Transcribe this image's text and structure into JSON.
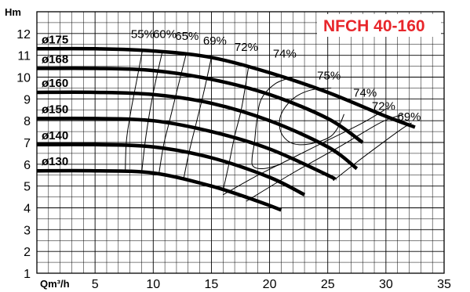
{
  "chart_data": {
    "type": "line",
    "title": "NFCH 40-160",
    "title_color": "#e8262b",
    "xlabel": "Qm³/h",
    "ylabel": "Hm",
    "xlim": [
      0,
      35
    ],
    "ylim": [
      1,
      13
    ],
    "xticks": [
      5,
      10,
      15,
      20,
      25,
      30,
      35
    ],
    "yticks": [
      1,
      2,
      3,
      4,
      5,
      6,
      7,
      8,
      9,
      10,
      11,
      12
    ],
    "grid": true,
    "series": [
      {
        "name": "ø175",
        "x": [
          0,
          5,
          10,
          15,
          20,
          25,
          30,
          32.5
        ],
        "y": [
          11.3,
          11.3,
          11.2,
          10.9,
          10.2,
          9.3,
          8.2,
          7.7
        ]
      },
      {
        "name": "ø168",
        "x": [
          0,
          5,
          10,
          15,
          20,
          25,
          28
        ],
        "y": [
          10.4,
          10.4,
          10.3,
          9.9,
          9.2,
          8.1,
          7.0
        ]
      },
      {
        "name": "ø160",
        "x": [
          0,
          5,
          10,
          15,
          20,
          25,
          27.5
        ],
        "y": [
          9.3,
          9.3,
          9.2,
          8.8,
          8.0,
          6.8,
          5.8
        ]
      },
      {
        "name": "ø150",
        "x": [
          0,
          5,
          10,
          15,
          20,
          25,
          25.6
        ],
        "y": [
          8.1,
          8.1,
          8.0,
          7.5,
          6.7,
          5.5,
          5.3
        ]
      },
      {
        "name": "ø140",
        "x": [
          0,
          5,
          10,
          15,
          20,
          23
        ],
        "y": [
          6.9,
          6.9,
          6.8,
          6.3,
          5.4,
          4.6
        ]
      },
      {
        "name": "ø130",
        "x": [
          0,
          5,
          10,
          15,
          19,
          21
        ],
        "y": [
          5.7,
          5.7,
          5.6,
          5.0,
          4.3,
          3.9
        ]
      }
    ],
    "efficiency_labels": [
      {
        "text": "55%",
        "x": 9.1,
        "y": 11.8
      },
      {
        "text": "60%",
        "x": 11.0,
        "y": 11.8
      },
      {
        "text": "65%",
        "x": 12.9,
        "y": 11.7
      },
      {
        "text": "69%",
        "x": 15.3,
        "y": 11.5
      },
      {
        "text": "72%",
        "x": 18.0,
        "y": 11.2
      },
      {
        "text": "74%",
        "x": 21.3,
        "y": 10.9
      },
      {
        "text": "75%",
        "x": 25.1,
        "y": 9.9
      },
      {
        "text": "74%",
        "x": 28.2,
        "y": 9.1
      },
      {
        "text": "72%",
        "x": 29.8,
        "y": 8.5
      },
      {
        "text": "69%",
        "x": 32.0,
        "y": 8.0
      }
    ],
    "efficiency_curves": [
      {
        "x": [
          7.6,
          7.7,
          8.1,
          8.6,
          9.1
        ],
        "y": [
          5.7,
          7.1,
          8.5,
          9.9,
          11.3
        ]
      },
      {
        "x": [
          9.0,
          9.3,
          9.7,
          10.2,
          10.8
        ],
        "y": [
          5.6,
          7.0,
          8.4,
          9.8,
          11.2
        ]
      },
      {
        "x": [
          10.5,
          10.9,
          11.5,
          12.1,
          12.8
        ],
        "y": [
          5.6,
          6.9,
          8.2,
          9.5,
          11.0
        ]
      },
      {
        "x": [
          12.6,
          13.1,
          13.7,
          14.3,
          15.0
        ],
        "y": [
          5.3,
          6.6,
          7.9,
          9.2,
          10.9
        ]
      },
      {
        "x": [
          16.0,
          16.5,
          17.0,
          17.6,
          18.2
        ],
        "y": [
          4.8,
          6.0,
          7.3,
          8.6,
          10.5
        ]
      },
      {
        "x": [
          22.0,
          20.5,
          19.3,
          18.9,
          18.7,
          18.5,
          18.6,
          19.5,
          21.0
        ],
        "y": [
          10.0,
          9.7,
          9.0,
          8.0,
          7.0,
          6.3,
          5.9,
          5.8,
          6.0
        ]
      },
      {
        "x": [
          25.3,
          23.5,
          22.0,
          21.0,
          20.9,
          21.5,
          22.5,
          24.0,
          25.3,
          26.0,
          26.4
        ],
        "y": [
          9.5,
          9.4,
          9.0,
          8.3,
          7.6,
          7.1,
          6.9,
          7.0,
          7.3,
          7.8,
          8.3
        ]
      },
      {
        "x": [
          16.0,
          19.0,
          22.0,
          25.0,
          28.0,
          30.2
        ],
        "y": [
          4.6,
          5.5,
          6.3,
          7.1,
          7.9,
          8.6
        ]
      },
      {
        "x": [
          18.0,
          22.0,
          26.0,
          29.5,
          31.5
        ],
        "y": [
          4.3,
          5.6,
          6.8,
          7.9,
          8.3
        ]
      },
      {
        "x": [
          25.6,
          27.5,
          29.5,
          31.3,
          32.2
        ],
        "y": [
          5.3,
          6.1,
          6.9,
          7.6,
          7.9
        ]
      }
    ]
  }
}
